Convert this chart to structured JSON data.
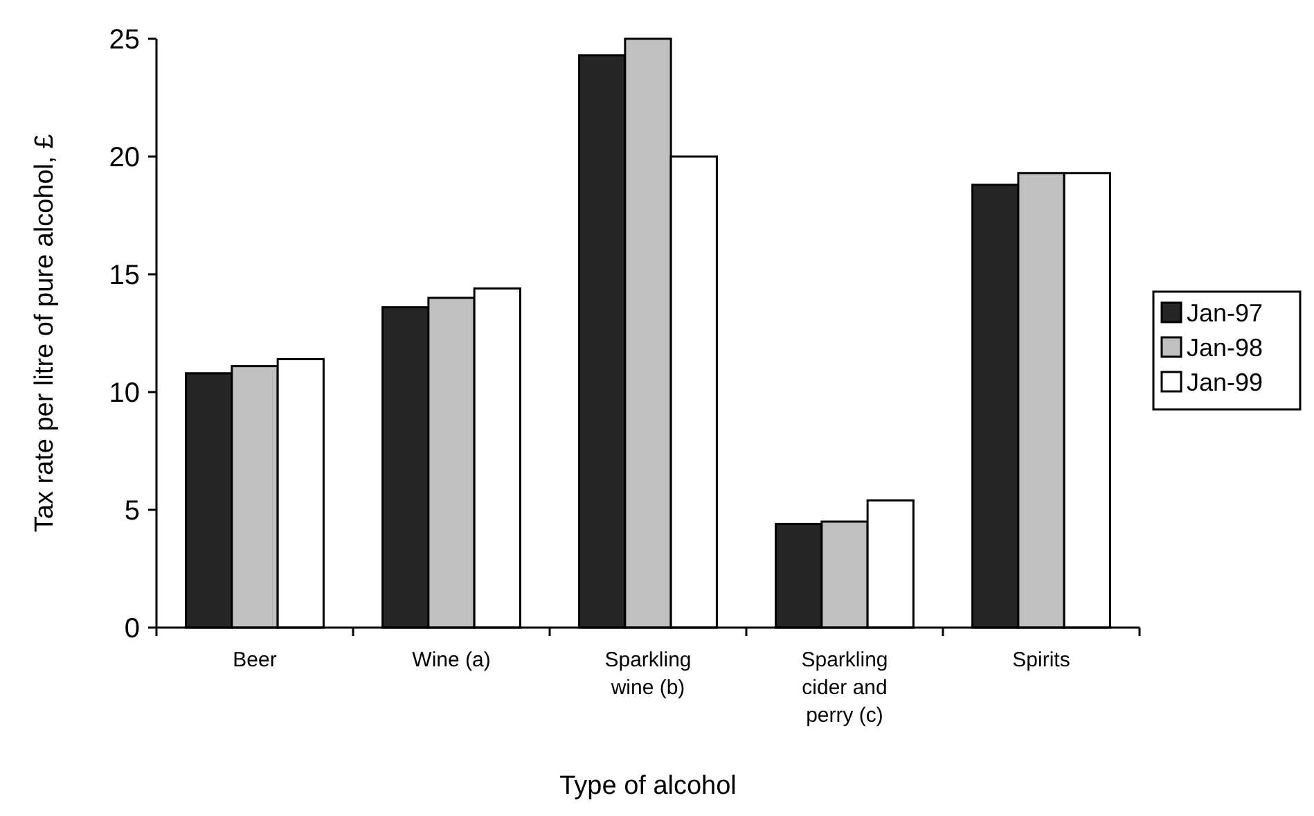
{
  "chart_data": {
    "type": "bar",
    "xlabel": "Type of alcohol",
    "ylabel": "Tax rate per litre of pure alcohol, £",
    "categories": [
      "Beer",
      "Wine (a)",
      "Sparkling wine (b)",
      "Sparkling cider and perry (c)",
      "Spirits"
    ],
    "series": [
      {
        "name": "Jan-97",
        "color": "#262626",
        "values": [
          10.8,
          13.6,
          24.3,
          4.4,
          18.8
        ]
      },
      {
        "name": "Jan-98",
        "color": "#c0c0c0",
        "values": [
          11.1,
          14.0,
          25.0,
          4.5,
          19.3
        ]
      },
      {
        "name": "Jan-99",
        "color": "#ffffff",
        "values": [
          11.4,
          14.4,
          20.0,
          5.4,
          19.3
        ]
      }
    ],
    "ylim": [
      0,
      25
    ],
    "yticks": [
      0,
      5,
      10,
      15,
      20,
      25
    ],
    "grid": false,
    "legend": "right"
  }
}
